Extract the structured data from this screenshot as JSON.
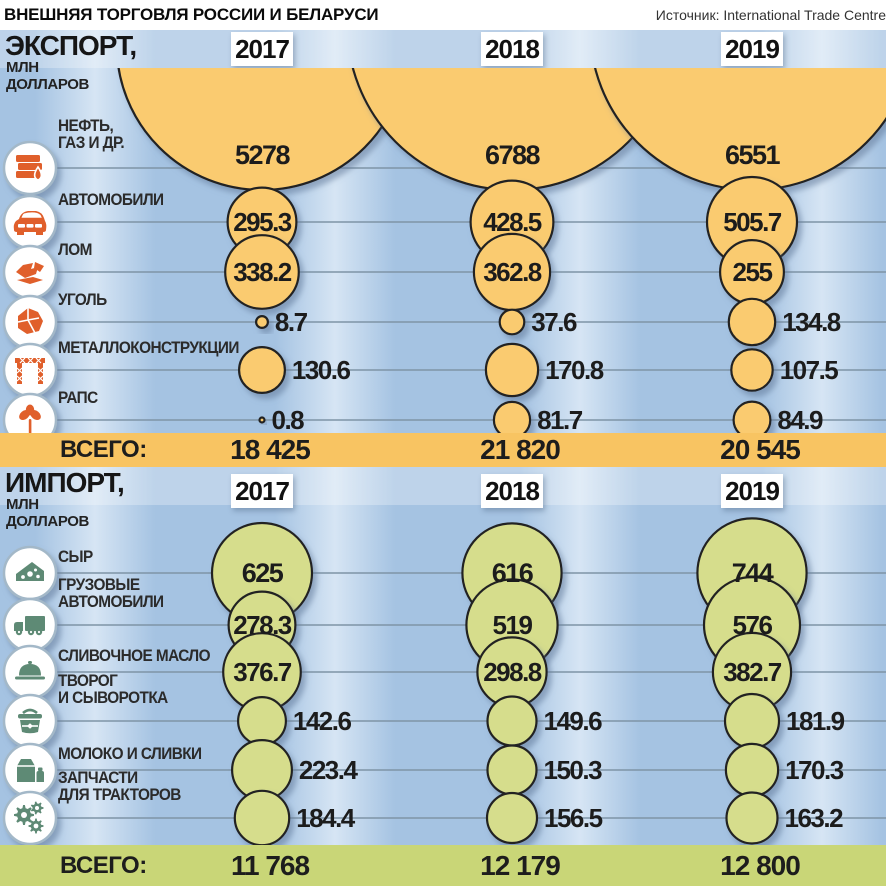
{
  "title": "ВНЕШНЯЯ ТОРГОВЛЯ РОССИИ И БЕЛАРУСИ",
  "source": "Источник: International Trade Centre",
  "years": [
    "2017",
    "2018",
    "2019"
  ],
  "colors": {
    "export_bubble": "#FACB70",
    "export_totals_bg": "#F8C462",
    "export_icon": "#E05F2B",
    "import_bubble": "#D6DD8C",
    "import_totals_bg": "#C9D677",
    "import_icon": "#5E8A75",
    "background_blue": "#A5C3E2",
    "gridline": "#7E94A6"
  },
  "chart_data": [
    {
      "type": "bubble",
      "section": "export",
      "header": "ЭКСПОРТ,",
      "unit": [
        "МЛН",
        "ДОЛЛАРОВ"
      ],
      "categories": [
        {
          "lines": [
            "НЕФТЬ,",
            "ГАЗ И ДР."
          ],
          "icon": "oil-gas-icon"
        },
        {
          "lines": [
            "АВТОМОБИЛИ"
          ],
          "icon": "car-icon"
        },
        {
          "lines": [
            "ЛОМ"
          ],
          "icon": "scrap-metal-icon"
        },
        {
          "lines": [
            "УГОЛЬ"
          ],
          "icon": "coal-icon"
        },
        {
          "lines": [
            "МЕТАЛЛОКОНСТРУКЦИИ"
          ],
          "icon": "steel-structures-icon"
        },
        {
          "lines": [
            "РАПС"
          ],
          "icon": "rapeseed-icon"
        }
      ],
      "series": [
        {
          "year": "2017",
          "values": [
            "5278",
            "295.3",
            "338.2",
            "8.7",
            "130.6",
            "0.8"
          ]
        },
        {
          "year": "2018",
          "values": [
            "6788",
            "428.5",
            "362.8",
            "37.6",
            "170.8",
            "81.7"
          ]
        },
        {
          "year": "2019",
          "values": [
            "6551",
            "505.7",
            "255",
            "134.8",
            "107.5",
            "84.9"
          ]
        }
      ],
      "totals_label": "ВСЕГО:",
      "totals": [
        "18 425",
        "21 820",
        "20 545"
      ]
    },
    {
      "type": "bubble",
      "section": "import",
      "header": "ИМПОРТ,",
      "unit": [
        "МЛН",
        "ДОЛЛАРОВ"
      ],
      "categories": [
        {
          "lines": [
            "СЫР"
          ],
          "icon": "cheese-icon"
        },
        {
          "lines": [
            "ГРУЗОВЫЕ",
            "АВТОМОБИЛИ"
          ],
          "icon": "truck-icon"
        },
        {
          "lines": [
            "СЛИВОЧНОЕ МАСЛО"
          ],
          "icon": "butter-icon"
        },
        {
          "lines": [
            "ТВОРОГ",
            "И СЫВОРОТКА"
          ],
          "icon": "curd-whey-icon"
        },
        {
          "lines": [
            "МОЛОКО И СЛИВКИ"
          ],
          "icon": "milk-cream-icon"
        },
        {
          "lines": [
            "ЗАПЧАСТИ",
            "ДЛЯ ТРАКТОРОВ"
          ],
          "icon": "tractor-parts-icon"
        }
      ],
      "series": [
        {
          "year": "2017",
          "values": [
            "625",
            "278.3",
            "376.7",
            "142.6",
            "223.4",
            "184.4"
          ]
        },
        {
          "year": "2018",
          "values": [
            "616",
            "519",
            "298.8",
            "149.6",
            "150.3",
            "156.5"
          ]
        },
        {
          "year": "2019",
          "values": [
            "744",
            "576",
            "382.7",
            "181.9",
            "170.3",
            "163.2"
          ]
        }
      ],
      "totals_label": "ВСЕГО:",
      "totals": [
        "11 768",
        "12 179",
        "12 800"
      ]
    }
  ]
}
